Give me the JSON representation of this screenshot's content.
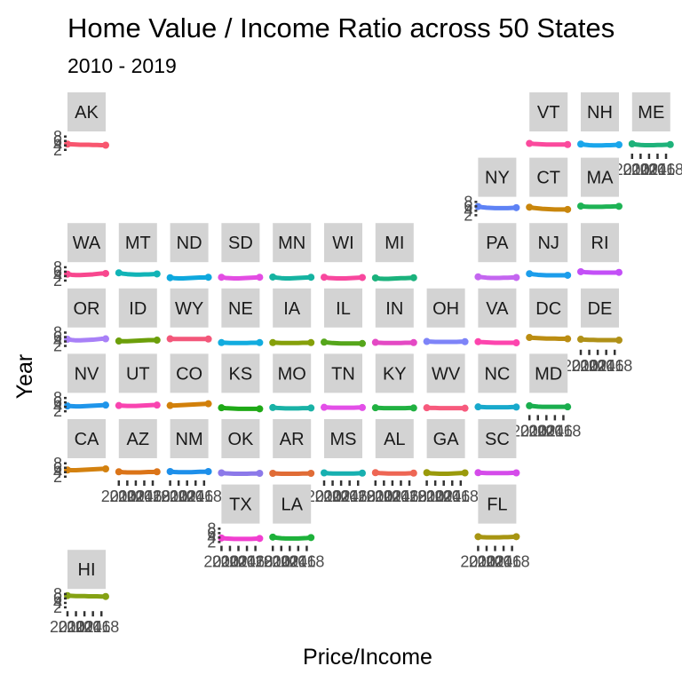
{
  "chart_data": {
    "type": "line",
    "title": "Home Value / Income Ratio across 50 States",
    "subtitle": "2010 - 2019",
    "xlabel": "Price/Income",
    "ylabel": "Year",
    "facet": "geofacet",
    "x": [
      2010,
      2011,
      2012,
      2013,
      2014,
      2015,
      2016,
      2017,
      2018,
      2019
    ],
    "xlim": [
      2010,
      2019
    ],
    "ylim": [
      1.5,
      9.5
    ],
    "y_ticks": [
      2,
      4,
      6,
      8
    ],
    "y_tick_labels": [
      "2",
      "4",
      "6",
      "8"
    ],
    "x_ticks": [
      2010,
      2012,
      2014,
      2016,
      2018
    ],
    "x_tick_labels": [
      "2010",
      "2012",
      "2014",
      "2016",
      "2018"
    ],
    "grid": false,
    "legend": "none",
    "series": [
      {
        "name": "AK",
        "row": 1,
        "col": 1,
        "color": "#F8566F",
        "values": [
          4.6,
          4.5,
          4.4,
          4.3,
          4.3,
          4.3,
          4.2,
          4.2,
          4.1,
          4.1
        ],
        "show_y": true,
        "show_x": false
      },
      {
        "name": "VT",
        "row": 1,
        "col": 10,
        "color": "#FB4A9D",
        "values": [
          4.9,
          4.7,
          4.6,
          4.5,
          4.4,
          4.4,
          4.4,
          4.4,
          4.4,
          4.4
        ],
        "show_y": false,
        "show_x": false
      },
      {
        "name": "NH",
        "row": 1,
        "col": 11,
        "color": "#1AA6EB",
        "values": [
          4.6,
          4.3,
          4.1,
          4.0,
          4.0,
          4.0,
          4.1,
          4.1,
          4.2,
          4.3
        ],
        "show_y": false,
        "show_x": false
      },
      {
        "name": "ME",
        "row": 1,
        "col": 12,
        "color": "#1EB27A",
        "values": [
          4.7,
          4.4,
          4.2,
          4.1,
          4.1,
          4.1,
          4.2,
          4.2,
          4.3,
          4.4
        ],
        "show_y": false,
        "show_x": true
      },
      {
        "name": "NY",
        "row": 2,
        "col": 9,
        "color": "#5E82F5",
        "values": [
          5.9,
          5.6,
          5.4,
          5.3,
          5.2,
          5.2,
          5.2,
          5.2,
          5.3,
          5.4
        ],
        "show_y": true,
        "show_x": false
      },
      {
        "name": "CT",
        "row": 2,
        "col": 10,
        "color": "#C9860C",
        "values": [
          5.6,
          5.3,
          5.1,
          4.9,
          4.8,
          4.7,
          4.6,
          4.6,
          4.6,
          4.6
        ],
        "show_y": false,
        "show_x": false
      },
      {
        "name": "MA",
        "row": 2,
        "col": 11,
        "color": "#1EB355",
        "values": [
          6.1,
          5.9,
          5.8,
          5.8,
          5.8,
          5.8,
          5.9,
          5.9,
          6.0,
          6.0
        ],
        "show_y": false,
        "show_x": false
      },
      {
        "name": "WA",
        "row": 3,
        "col": 1,
        "color": "#F8478E",
        "values": [
          4.9,
          4.6,
          4.5,
          4.5,
          4.6,
          4.7,
          4.8,
          5.0,
          5.2,
          5.2
        ],
        "show_y": true,
        "show_x": false
      },
      {
        "name": "MT",
        "row": 3,
        "col": 2,
        "color": "#11B4B7",
        "values": [
          5.5,
          5.1,
          4.9,
          4.8,
          4.7,
          4.7,
          4.8,
          4.8,
          4.9,
          5.0
        ],
        "show_y": false,
        "show_x": false
      },
      {
        "name": "ND",
        "row": 3,
        "col": 3,
        "color": "#0EA8DE",
        "values": [
          3.3,
          3.1,
          3.0,
          3.0,
          3.1,
          3.2,
          3.3,
          3.4,
          3.4,
          3.5
        ],
        "show_y": false,
        "show_x": false
      },
      {
        "name": "SD",
        "row": 3,
        "col": 4,
        "color": "#E34DE3",
        "values": [
          3.5,
          3.2,
          3.1,
          3.0,
          3.0,
          3.1,
          3.2,
          3.3,
          3.4,
          3.5
        ],
        "show_y": false,
        "show_x": false
      },
      {
        "name": "MN",
        "row": 3,
        "col": 5,
        "color": "#15B3A1",
        "values": [
          3.6,
          3.3,
          3.1,
          3.0,
          3.0,
          3.1,
          3.2,
          3.3,
          3.4,
          3.5
        ],
        "show_y": false,
        "show_x": false
      },
      {
        "name": "WI",
        "row": 3,
        "col": 6,
        "color": "#F8479E",
        "values": [
          3.5,
          3.2,
          3.1,
          3.0,
          3.0,
          3.0,
          3.1,
          3.2,
          3.3,
          3.4
        ],
        "show_y": false,
        "show_x": false
      },
      {
        "name": "MI",
        "row": 3,
        "col": 7,
        "color": "#1AB27C",
        "values": [
          3.2,
          2.9,
          2.8,
          2.8,
          2.9,
          3.0,
          3.1,
          3.1,
          3.2,
          3.3
        ],
        "show_y": false,
        "show_x": false
      },
      {
        "name": "PA",
        "row": 3,
        "col": 9,
        "color": "#C466F0",
        "values": [
          3.7,
          3.5,
          3.3,
          3.2,
          3.2,
          3.2,
          3.3,
          3.3,
          3.4,
          3.4
        ],
        "show_y": false,
        "show_x": false
      },
      {
        "name": "NJ",
        "row": 3,
        "col": 10,
        "color": "#1C9DEB",
        "values": [
          5.1,
          4.8,
          4.6,
          4.5,
          4.4,
          4.4,
          4.4,
          4.4,
          4.4,
          4.4
        ],
        "show_y": false,
        "show_x": false
      },
      {
        "name": "RI",
        "row": 3,
        "col": 11,
        "color": "#C34FF7",
        "values": [
          6.0,
          5.8,
          5.7,
          5.6,
          5.6,
          5.6,
          5.6,
          5.6,
          5.6,
          5.7
        ],
        "show_y": false,
        "show_x": false
      },
      {
        "name": "OR",
        "row": 4,
        "col": 1,
        "color": "#A880F7",
        "values": [
          5.0,
          4.7,
          4.5,
          4.5,
          4.6,
          4.7,
          4.8,
          5.0,
          5.2,
          5.2
        ],
        "show_y": true,
        "show_x": false
      },
      {
        "name": "ID",
        "row": 4,
        "col": 2,
        "color": "#6C9F0A",
        "values": [
          4.2,
          4.1,
          4.1,
          4.2,
          4.3,
          4.4,
          4.5,
          4.6,
          4.6,
          4.6
        ],
        "show_y": false,
        "show_x": false
      },
      {
        "name": "WY",
        "row": 4,
        "col": 3,
        "color": "#F3577A",
        "values": [
          5.2,
          5.1,
          5.1,
          5.1,
          5.1,
          5.1,
          5.1,
          5.1,
          5.1,
          5.1
        ],
        "show_y": false,
        "show_x": false
      },
      {
        "name": "NE",
        "row": 4,
        "col": 4,
        "color": "#12ACDF",
        "values": [
          3.5,
          3.4,
          3.3,
          3.3,
          3.3,
          3.3,
          3.3,
          3.4,
          3.4,
          3.5
        ],
        "show_y": false,
        "show_x": false
      },
      {
        "name": "IA",
        "row": 4,
        "col": 5,
        "color": "#85A00A",
        "values": [
          3.5,
          3.4,
          3.3,
          3.3,
          3.3,
          3.3,
          3.3,
          3.4,
          3.4,
          3.5
        ],
        "show_y": false,
        "show_x": false
      },
      {
        "name": "IL",
        "row": 4,
        "col": 6,
        "color": "#55A61B",
        "values": [
          3.7,
          3.5,
          3.3,
          3.2,
          3.1,
          3.1,
          3.1,
          3.1,
          3.1,
          3.1
        ],
        "show_y": false,
        "show_x": false
      },
      {
        "name": "IN",
        "row": 4,
        "col": 7,
        "color": "#E449C4",
        "values": [
          3.6,
          3.4,
          3.3,
          3.3,
          3.3,
          3.3,
          3.3,
          3.4,
          3.4,
          3.5
        ],
        "show_y": false,
        "show_x": false
      },
      {
        "name": "OH",
        "row": 4,
        "col": 8,
        "color": "#7E84F8",
        "values": [
          4.0,
          3.9,
          3.8,
          3.8,
          3.8,
          3.8,
          3.8,
          3.8,
          3.9,
          3.9
        ],
        "show_y": false,
        "show_x": false
      },
      {
        "name": "VA",
        "row": 4,
        "col": 9,
        "color": "#FD45AE",
        "values": [
          3.9,
          3.7,
          3.6,
          3.5,
          3.4,
          3.4,
          3.4,
          3.4,
          3.4,
          3.4
        ],
        "show_y": false,
        "show_x": false
      },
      {
        "name": "DC",
        "row": 4,
        "col": 10,
        "color": "#BB8D12",
        "values": [
          5.8,
          5.6,
          5.5,
          5.4,
          5.3,
          5.3,
          5.3,
          5.2,
          5.2,
          5.2
        ],
        "show_y": false,
        "show_x": false
      },
      {
        "name": "DE",
        "row": 4,
        "col": 11,
        "color": "#B09118",
        "values": [
          5.0,
          4.8,
          4.7,
          4.7,
          4.6,
          4.6,
          4.6,
          4.6,
          4.6,
          4.6
        ],
        "show_y": false,
        "show_x": true
      },
      {
        "name": "NV",
        "row": 5,
        "col": 1,
        "color": "#1F95EA",
        "values": [
          4.4,
          4.3,
          4.2,
          4.2,
          4.3,
          4.4,
          4.5,
          4.6,
          4.7,
          4.8
        ],
        "show_y": true,
        "show_x": false
      },
      {
        "name": "UT",
        "row": 5,
        "col": 2,
        "color": "#F944B0",
        "values": [
          4.6,
          4.5,
          4.4,
          4.4,
          4.4,
          4.5,
          4.6,
          4.7,
          4.8,
          4.8
        ],
        "show_y": false,
        "show_x": false
      },
      {
        "name": "CO",
        "row": 5,
        "col": 3,
        "color": "#D2800A",
        "values": [
          4.6,
          4.6,
          4.7,
          4.8,
          4.9,
          5.0,
          5.1,
          5.2,
          5.3,
          5.4
        ],
        "show_y": false,
        "show_x": false
      },
      {
        "name": "KS",
        "row": 5,
        "col": 4,
        "color": "#1EA916",
        "values": [
          3.6,
          3.4,
          3.3,
          3.2,
          3.1,
          3.1,
          3.1,
          3.1,
          3.1,
          3.1
        ],
        "show_y": false,
        "show_x": false
      },
      {
        "name": "MO",
        "row": 5,
        "col": 5,
        "color": "#19B2A6",
        "values": [
          3.7,
          3.5,
          3.4,
          3.3,
          3.3,
          3.3,
          3.3,
          3.4,
          3.4,
          3.5
        ],
        "show_y": false,
        "show_x": false
      },
      {
        "name": "TN",
        "row": 5,
        "col": 6,
        "color": "#E34FE8",
        "values": [
          3.8,
          3.7,
          3.6,
          3.6,
          3.6,
          3.6,
          3.6,
          3.6,
          3.7,
          3.7
        ],
        "show_y": false,
        "show_x": false
      },
      {
        "name": "KY",
        "row": 5,
        "col": 7,
        "color": "#20B141",
        "values": [
          3.6,
          3.5,
          3.4,
          3.4,
          3.4,
          3.4,
          3.4,
          3.4,
          3.5,
          3.5
        ],
        "show_y": false,
        "show_x": false
      },
      {
        "name": "WV",
        "row": 5,
        "col": 8,
        "color": "#F75A7D",
        "values": [
          3.6,
          3.5,
          3.5,
          3.4,
          3.4,
          3.4,
          3.4,
          3.4,
          3.4,
          3.4
        ],
        "show_y": false,
        "show_x": false
      },
      {
        "name": "NC",
        "row": 5,
        "col": 9,
        "color": "#18A9CC",
        "values": [
          4.0,
          3.9,
          3.8,
          3.8,
          3.8,
          3.8,
          3.8,
          3.8,
          3.9,
          3.9
        ],
        "show_y": false,
        "show_x": false
      },
      {
        "name": "MD",
        "row": 5,
        "col": 10,
        "color": "#1AAE4E",
        "values": [
          4.5,
          4.3,
          4.1,
          4.0,
          4.0,
          4.0,
          4.0,
          4.0,
          4.0,
          4.0
        ],
        "show_y": false,
        "show_x": true
      },
      {
        "name": "CA",
        "row": 6,
        "col": 1,
        "color": "#D3810F",
        "values": [
          5.0,
          4.9,
          4.9,
          5.0,
          5.1,
          5.2,
          5.3,
          5.4,
          5.5,
          5.5
        ],
        "show_y": true,
        "show_x": false
      },
      {
        "name": "AZ",
        "row": 6,
        "col": 2,
        "color": "#DB7418",
        "values": [
          4.2,
          4.0,
          3.9,
          3.9,
          3.9,
          3.9,
          4.0,
          4.1,
          4.1,
          4.2
        ],
        "show_y": false,
        "show_x": true
      },
      {
        "name": "NM",
        "row": 6,
        "col": 3,
        "color": "#1D8FEA",
        "values": [
          4.3,
          4.1,
          4.0,
          4.0,
          4.0,
          4.0,
          4.1,
          4.2,
          4.2,
          4.3
        ],
        "show_y": false,
        "show_x": true
      },
      {
        "name": "OK",
        "row": 6,
        "col": 4,
        "color": "#8C79E9",
        "values": [
          3.7,
          3.5,
          3.4,
          3.3,
          3.3,
          3.3,
          3.3,
          3.4,
          3.4,
          3.5
        ],
        "show_y": false,
        "show_x": false
      },
      {
        "name": "AR",
        "row": 6,
        "col": 5,
        "color": "#E06C36",
        "values": [
          3.5,
          3.4,
          3.3,
          3.3,
          3.3,
          3.3,
          3.3,
          3.4,
          3.4,
          3.5
        ],
        "show_y": false,
        "show_x": false
      },
      {
        "name": "MS",
        "row": 6,
        "col": 6,
        "color": "#17B0B0",
        "values": [
          3.7,
          3.5,
          3.4,
          3.4,
          3.4,
          3.4,
          3.4,
          3.4,
          3.5,
          3.6
        ],
        "show_y": false,
        "show_x": true
      },
      {
        "name": "AL",
        "row": 6,
        "col": 7,
        "color": "#EE6654",
        "values": [
          3.8,
          3.6,
          3.5,
          3.4,
          3.4,
          3.4,
          3.4,
          3.4,
          3.5,
          3.6
        ],
        "show_y": false,
        "show_x": true
      },
      {
        "name": "GA",
        "row": 6,
        "col": 8,
        "color": "#9A9A0B",
        "values": [
          3.8,
          3.5,
          3.4,
          3.3,
          3.3,
          3.3,
          3.4,
          3.5,
          3.6,
          3.7
        ],
        "show_y": false,
        "show_x": true
      },
      {
        "name": "SC",
        "row": 6,
        "col": 9,
        "color": "#D54BEA",
        "values": [
          3.8,
          3.7,
          3.6,
          3.6,
          3.6,
          3.6,
          3.6,
          3.6,
          3.7,
          3.7
        ],
        "show_y": false,
        "show_x": false
      },
      {
        "name": "TX",
        "row": 7,
        "col": 4,
        "color": "#F13FD0",
        "values": [
          3.8,
          3.6,
          3.5,
          3.4,
          3.4,
          3.4,
          3.4,
          3.4,
          3.5,
          3.6
        ],
        "show_y": true,
        "show_x": true
      },
      {
        "name": "LA",
        "row": 7,
        "col": 5,
        "color": "#1DB13A",
        "values": [
          4.2,
          3.9,
          3.7,
          3.6,
          3.6,
          3.6,
          3.6,
          3.7,
          3.8,
          4.0
        ],
        "show_y": false,
        "show_x": true
      },
      {
        "name": "FL",
        "row": 7,
        "col": 9,
        "color": "#A79512",
        "values": [
          4.4,
          4.2,
          4.1,
          4.1,
          4.1,
          4.1,
          4.2,
          4.2,
          4.3,
          4.4
        ],
        "show_y": false,
        "show_x": true
      },
      {
        "name": "HI",
        "row": 8,
        "col": 1,
        "color": "#85A214",
        "values": [
          7.3,
          7.2,
          7.1,
          7.1,
          7.1,
          7.0,
          7.0,
          7.0,
          6.9,
          6.9
        ],
        "show_y": true,
        "show_x": true
      }
    ]
  }
}
